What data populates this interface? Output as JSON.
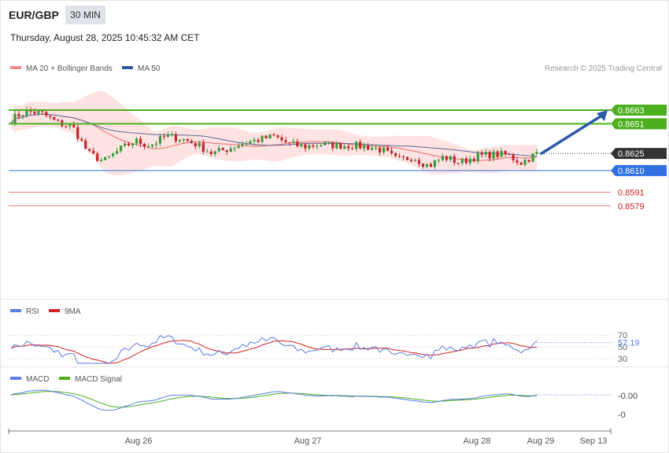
{
  "header": {
    "symbol": "EUR/GBP",
    "timeframe": "30 MIN",
    "datetime": "Thursday, August 28, 2025 10:45:32 AM CET",
    "copyright": "Research © 2025 Trading Central"
  },
  "colors": {
    "up_candle": "#3a9a3a",
    "down_candle": "#c0272d",
    "band_fill": "#ffd9d9",
    "ma20": "#e86b6b",
    "ma50": "#5a6a9a",
    "resistance": "#4caf1e",
    "pivot": "#2f6fe0",
    "support": "#ef7b7b",
    "current": "#333333",
    "arrow": "#2a5aa8",
    "rsi": "#5b7be0",
    "rsi_ma": "#d42020",
    "macd": "#5b7be0",
    "macd_signal": "#4caf1e"
  },
  "legend": {
    "ma20": "MA 20 + Bollinger Bands",
    "ma50": "MA 50",
    "rsi": "RSI",
    "rsi_ma": "9MA",
    "macd": "MACD",
    "macd_signal": "MACD Signal"
  },
  "levels": [
    {
      "label": "0.8663",
      "value": 0.8663,
      "kind": "resistance"
    },
    {
      "label": "0.8651",
      "value": 0.8651,
      "kind": "resistance"
    },
    {
      "label": "0.8625",
      "value": 0.8625,
      "kind": "current"
    },
    {
      "label": "0.8610",
      "value": 0.861,
      "kind": "pivot"
    },
    {
      "label": "0.8591",
      "value": 0.8591,
      "kind": "support"
    },
    {
      "label": "0.8579",
      "value": 0.8579,
      "kind": "support"
    }
  ],
  "rsi_panel": {
    "ticks": [
      "70",
      "50",
      "30"
    ],
    "current_label": "57.19"
  },
  "macd_panel": {
    "ticks": [
      "-0.00",
      "-0"
    ]
  },
  "x_axis": {
    "labels": [
      "Aug 26",
      "Aug 27",
      "Aug 28",
      "Aug 29",
      "Sep 13"
    ]
  },
  "chart_data": {
    "type": "candlestick",
    "series_anchor_prices": [
      0.8655,
      0.8662,
      0.866,
      0.8652,
      0.8648,
      0.8625,
      0.8618,
      0.8628,
      0.8636,
      0.8632,
      0.864,
      0.8638,
      0.8633,
      0.8625,
      0.8629,
      0.8634,
      0.8637,
      0.864,
      0.8633,
      0.8631,
      0.8633,
      0.8632,
      0.8632,
      0.8631,
      0.8628,
      0.8619,
      0.8622,
      0.8614,
      0.8622,
      0.8617,
      0.8622,
      0.8624,
      0.8624,
      0.8617,
      0.8625
    ],
    "forecast_target": 0.8663,
    "rsi_current": 57.19
  }
}
